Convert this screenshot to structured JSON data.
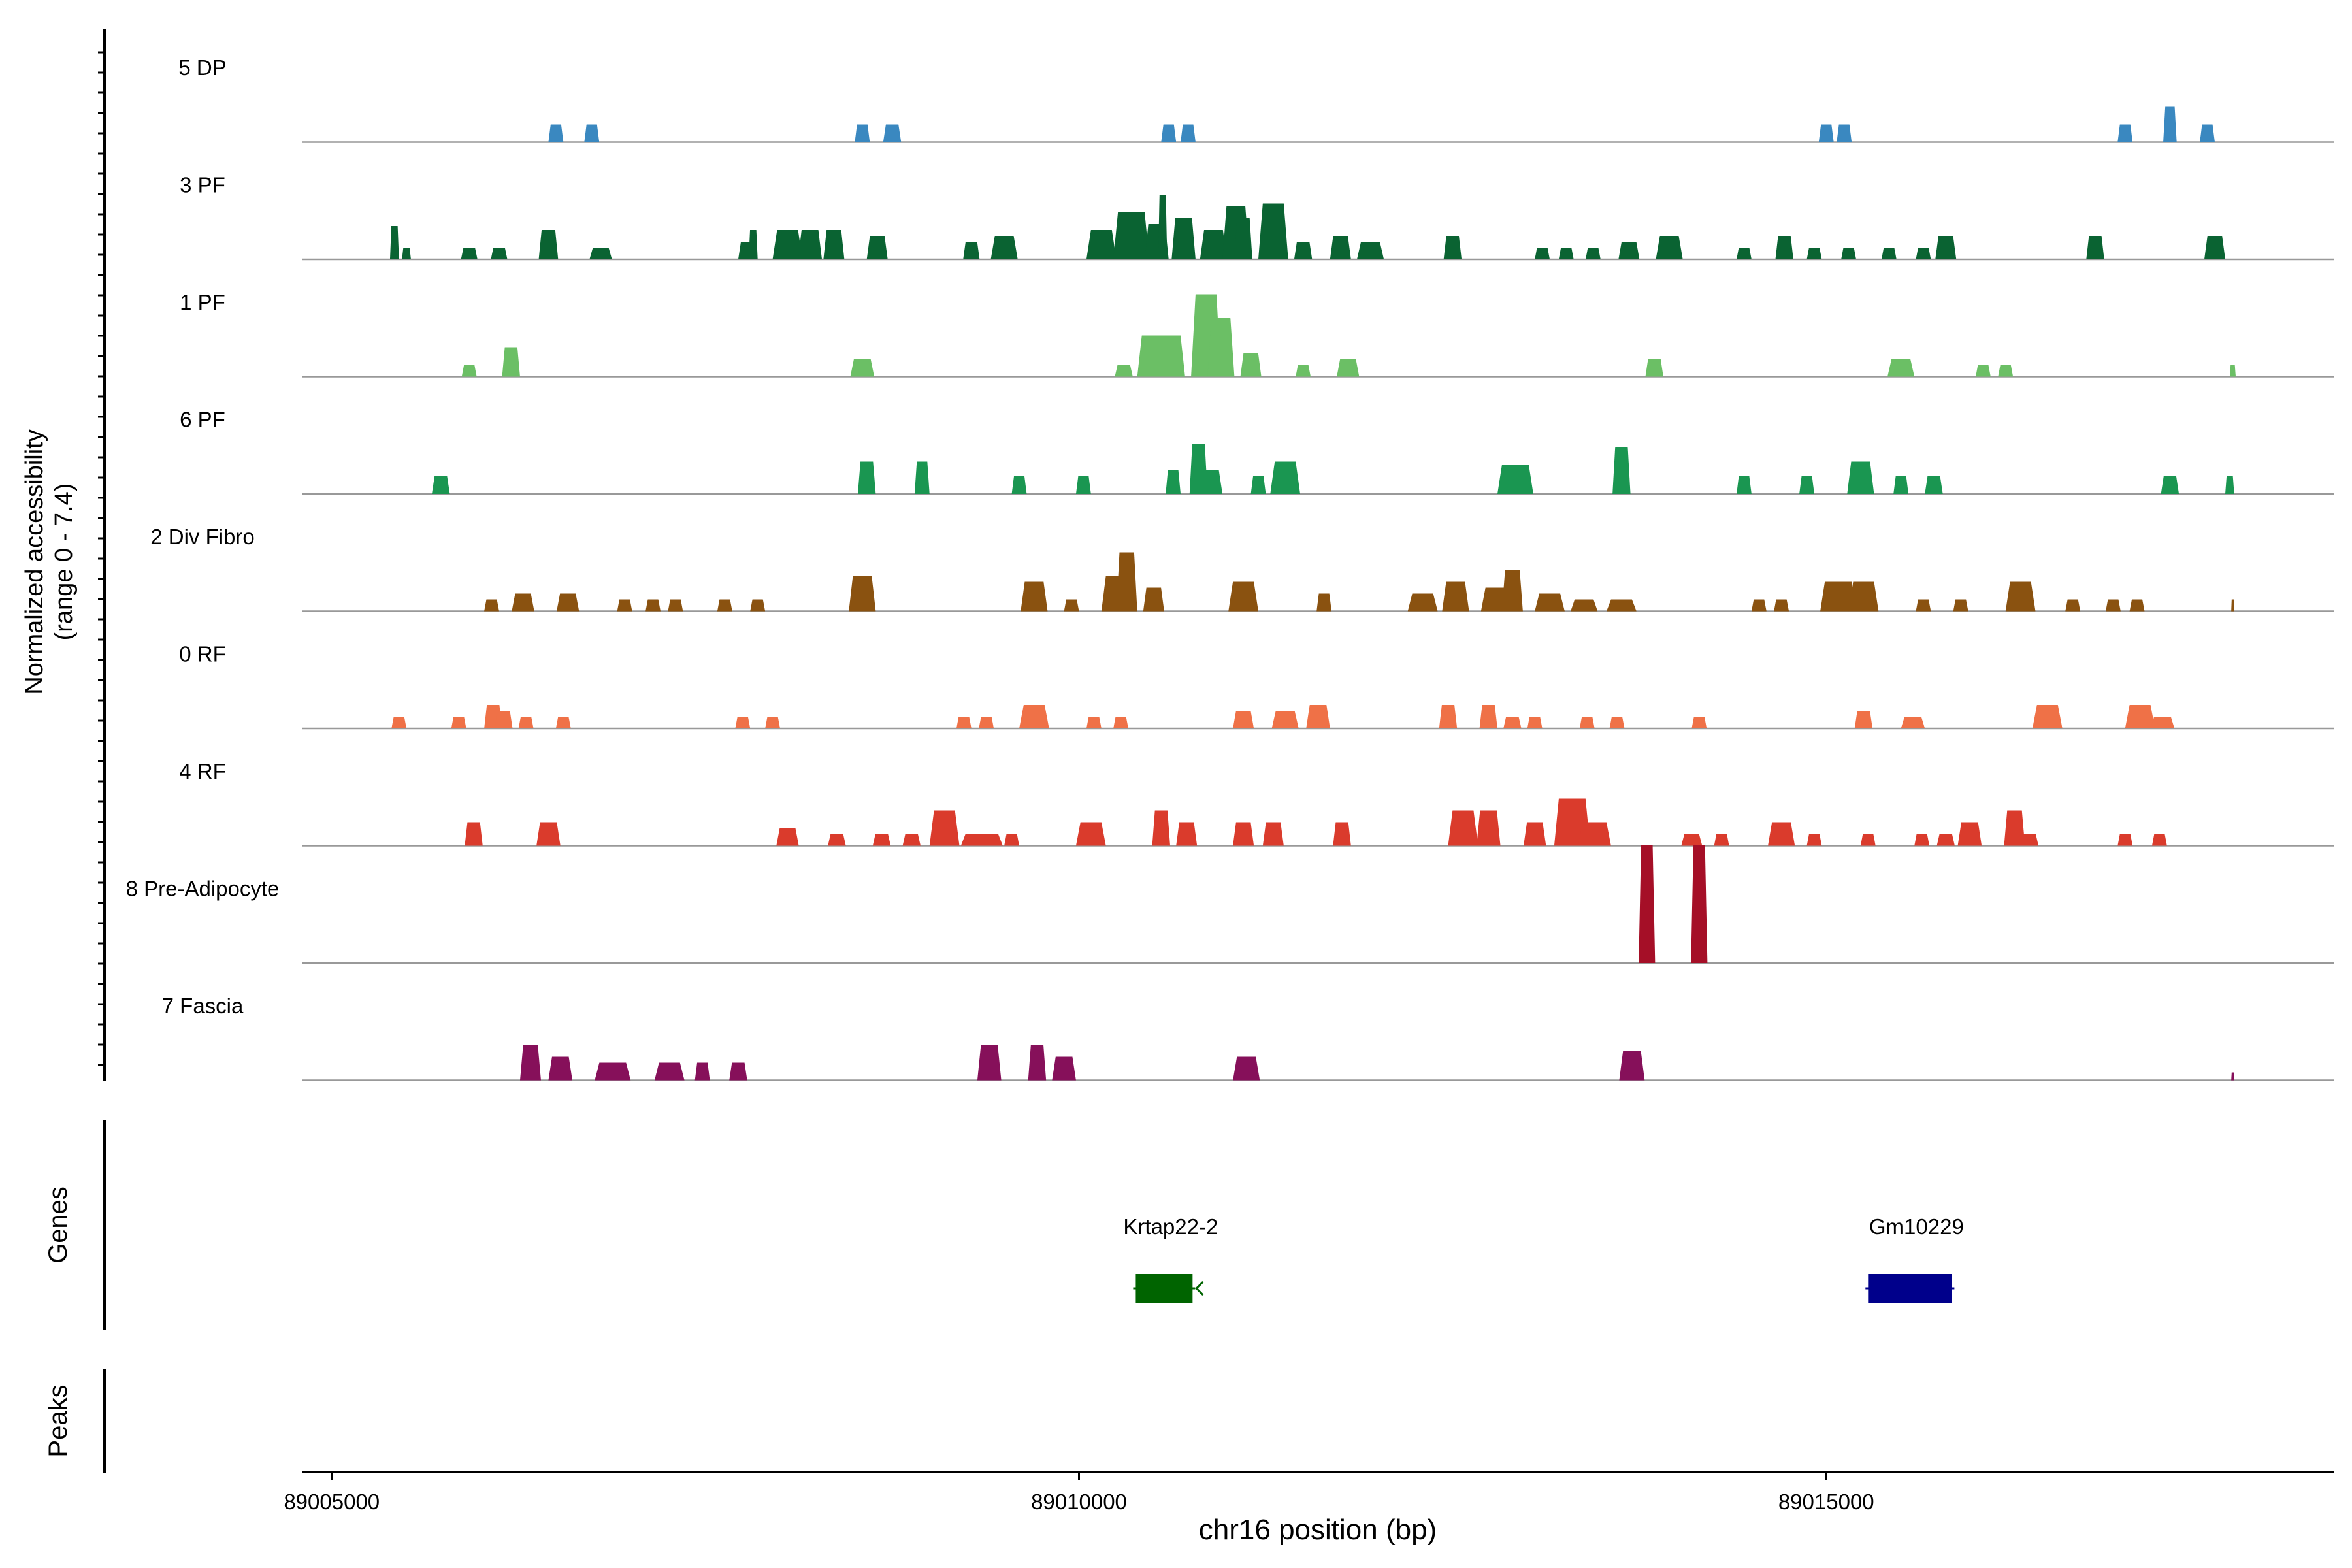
{
  "chart_data": {
    "type": "area",
    "title": "",
    "ylabel_line1": "Normalized accessibility",
    "ylabel_line2": "(range 0 - 7.4)",
    "xlabel": "chr16 position (bp)",
    "xlim": [
      89004800,
      89018400
    ],
    "ylim": [
      0,
      7.4
    ],
    "x_ticks": [
      {
        "value": 89005000,
        "label": "89005000"
      },
      {
        "value": 89010000,
        "label": "89010000"
      },
      {
        "value": 89015000,
        "label": "89015000"
      }
    ],
    "genes_label": "Genes",
    "peaks_label": "Peaks",
    "series": [
      {
        "name": "5 DP",
        "color": "#3a88c0",
        "peaks": [
          [
            89006500,
            100,
            3.6
          ],
          [
            89006740,
            100,
            3.6
          ],
          [
            89008550,
            100,
            3.6
          ],
          [
            89008750,
            120,
            3.6
          ],
          [
            89010600,
            100,
            3.6
          ],
          [
            89010730,
            100,
            3.6
          ],
          [
            89015000,
            100,
            3.6
          ],
          [
            89015120,
            100,
            3.6
          ],
          [
            89017000,
            100,
            3.6
          ],
          [
            89017300,
            90,
            7.2
          ],
          [
            89017550,
            100,
            3.6
          ]
        ]
      },
      {
        "name": "3 PF",
        "color": "#0a6332",
        "peaks": [
          [
            89005420,
            60,
            6.8
          ],
          [
            89005500,
            60,
            2.4
          ],
          [
            89005920,
            110,
            2.4
          ],
          [
            89006120,
            110,
            2.4
          ],
          [
            89006450,
            130,
            6.0
          ],
          [
            89006800,
            150,
            2.4
          ],
          [
            89007780,
            120,
            3.6
          ],
          [
            89007820,
            60,
            6.0
          ],
          [
            89008050,
            200,
            6.0
          ],
          [
            89008200,
            160,
            6.0
          ],
          [
            89008360,
            140,
            6.0
          ],
          [
            89008650,
            140,
            4.8
          ],
          [
            89009280,
            110,
            3.6
          ],
          [
            89009500,
            180,
            4.8
          ],
          [
            89010150,
            200,
            6.0
          ],
          [
            89010350,
            240,
            9.6
          ],
          [
            89010520,
            160,
            7.2
          ],
          [
            89010560,
            60,
            13.2
          ],
          [
            89010700,
            160,
            8.4
          ],
          [
            89010900,
            180,
            6.0
          ],
          [
            89011050,
            180,
            10.8
          ],
          [
            89011100,
            120,
            8.4
          ],
          [
            89011300,
            200,
            11.4
          ],
          [
            89011500,
            120,
            3.6
          ],
          [
            89011750,
            140,
            4.8
          ],
          [
            89011950,
            180,
            3.6
          ],
          [
            89012500,
            120,
            4.8
          ],
          [
            89013100,
            100,
            2.4
          ],
          [
            89013260,
            100,
            2.4
          ],
          [
            89013440,
            100,
            2.4
          ],
          [
            89013680,
            140,
            3.6
          ],
          [
            89013950,
            180,
            4.8
          ],
          [
            89014450,
            100,
            2.4
          ],
          [
            89014720,
            120,
            4.8
          ],
          [
            89014920,
            100,
            2.4
          ],
          [
            89015150,
            100,
            2.4
          ],
          [
            89015420,
            100,
            2.4
          ],
          [
            89015650,
            100,
            2.4
          ],
          [
            89015800,
            140,
            4.8
          ],
          [
            89016800,
            120,
            4.8
          ],
          [
            89017600,
            140,
            4.8
          ]
        ]
      },
      {
        "name": "1 PF",
        "color": "#6bbf65",
        "peaks": [
          [
            89005920,
            100,
            2.4
          ],
          [
            89006200,
            120,
            6.0
          ],
          [
            89008550,
            160,
            3.6
          ],
          [
            89010300,
            120,
            2.4
          ],
          [
            89010550,
            320,
            8.4
          ],
          [
            89010850,
            200,
            16.8
          ],
          [
            89010950,
            180,
            12.0
          ],
          [
            89011150,
            140,
            4.8
          ],
          [
            89011500,
            100,
            2.4
          ],
          [
            89011800,
            150,
            3.6
          ],
          [
            89013850,
            120,
            3.6
          ],
          [
            89015500,
            180,
            3.6
          ],
          [
            89016050,
            100,
            2.4
          ],
          [
            89016200,
            100,
            2.4
          ],
          [
            89017720,
            40,
            2.4
          ]
        ]
      },
      {
        "name": "6 PF",
        "color": "#1a9651",
        "peaks": [
          [
            89005730,
            120,
            3.6
          ],
          [
            89008580,
            120,
            6.6
          ],
          [
            89008950,
            100,
            6.6
          ],
          [
            89009600,
            100,
            3.6
          ],
          [
            89010030,
            100,
            3.6
          ],
          [
            89010630,
            100,
            4.8
          ],
          [
            89010800,
            120,
            10.2
          ],
          [
            89010880,
            160,
            4.8
          ],
          [
            89011200,
            100,
            3.6
          ],
          [
            89011380,
            200,
            6.6
          ],
          [
            89012920,
            240,
            6.0
          ],
          [
            89013630,
            120,
            9.6
          ],
          [
            89014450,
            100,
            3.6
          ],
          [
            89014870,
            100,
            3.6
          ],
          [
            89015230,
            180,
            6.6
          ],
          [
            89015500,
            100,
            3.6
          ],
          [
            89015720,
            120,
            3.6
          ],
          [
            89017300,
            120,
            3.6
          ],
          [
            89017700,
            60,
            3.6
          ]
        ]
      },
      {
        "name": "2 Div Fibro",
        "color": "#8a5210",
        "peaks": [
          [
            89006070,
            100,
            2.4
          ],
          [
            89006280,
            150,
            3.6
          ],
          [
            89006580,
            150,
            3.6
          ],
          [
            89006960,
            100,
            2.4
          ],
          [
            89007150,
            100,
            2.4
          ],
          [
            89007300,
            100,
            2.4
          ],
          [
            89007630,
            100,
            2.4
          ],
          [
            89007850,
            100,
            2.4
          ],
          [
            89008550,
            180,
            7.2
          ],
          [
            89009700,
            180,
            6.0
          ],
          [
            89009950,
            100,
            2.4
          ],
          [
            89010250,
            200,
            7.2
          ],
          [
            89010320,
            140,
            12.0
          ],
          [
            89010500,
            140,
            4.8
          ],
          [
            89011100,
            200,
            6.0
          ],
          [
            89011640,
            100,
            3.6
          ],
          [
            89012300,
            200,
            3.6
          ],
          [
            89012520,
            180,
            6.0
          ],
          [
            89012790,
            200,
            4.8
          ],
          [
            89012900,
            140,
            8.4
          ],
          [
            89013150,
            200,
            3.6
          ],
          [
            89013380,
            180,
            2.4
          ],
          [
            89013630,
            200,
            2.4
          ],
          [
            89014550,
            100,
            2.4
          ],
          [
            89014700,
            100,
            2.4
          ],
          [
            89015080,
            240,
            6.0
          ],
          [
            89015250,
            200,
            6.0
          ],
          [
            89015650,
            100,
            2.4
          ],
          [
            89015900,
            100,
            2.4
          ],
          [
            89016300,
            200,
            6.0
          ],
          [
            89016650,
            100,
            2.4
          ],
          [
            89016920,
            100,
            2.4
          ],
          [
            89017080,
            100,
            2.4
          ],
          [
            89017720,
            20,
            2.4
          ]
        ]
      },
      {
        "name": "0 RF",
        "color": "#ef7147",
        "peaks": [
          [
            89005450,
            100,
            2.4
          ],
          [
            89005850,
            100,
            2.4
          ],
          [
            89006080,
            120,
            4.8
          ],
          [
            89006150,
            120,
            3.6
          ],
          [
            89006300,
            100,
            2.4
          ],
          [
            89006550,
            100,
            2.4
          ],
          [
            89007750,
            100,
            2.4
          ],
          [
            89007950,
            100,
            2.4
          ],
          [
            89009230,
            100,
            2.4
          ],
          [
            89009380,
            100,
            2.4
          ],
          [
            89009700,
            200,
            4.8
          ],
          [
            89010100,
            100,
            2.4
          ],
          [
            89010280,
            100,
            2.4
          ],
          [
            89011100,
            140,
            3.6
          ],
          [
            89011380,
            180,
            3.6
          ],
          [
            89011600,
            160,
            4.8
          ],
          [
            89012470,
            120,
            4.8
          ],
          [
            89012740,
            120,
            4.8
          ],
          [
            89012900,
            120,
            2.4
          ],
          [
            89013050,
            100,
            2.4
          ],
          [
            89013400,
            100,
            2.4
          ],
          [
            89013600,
            100,
            2.4
          ],
          [
            89014150,
            100,
            2.4
          ],
          [
            89015250,
            120,
            3.6
          ],
          [
            89015580,
            160,
            2.4
          ],
          [
            89016480,
            200,
            4.8
          ],
          [
            89017100,
            200,
            4.8
          ],
          [
            89017250,
            160,
            2.4
          ]
        ]
      },
      {
        "name": "4 RF",
        "color": "#da3b2c",
        "peaks": [
          [
            89005950,
            120,
            4.8
          ],
          [
            89006450,
            160,
            4.8
          ],
          [
            89008050,
            150,
            3.6
          ],
          [
            89008380,
            120,
            2.4
          ],
          [
            89008680,
            120,
            2.4
          ],
          [
            89008880,
            120,
            2.4
          ],
          [
            89009100,
            200,
            7.2
          ],
          [
            89009350,
            280,
            2.4
          ],
          [
            89009550,
            100,
            2.4
          ],
          [
            89010080,
            200,
            4.8
          ],
          [
            89010550,
            120,
            7.2
          ],
          [
            89010720,
            140,
            4.8
          ],
          [
            89011100,
            140,
            4.8
          ],
          [
            89011300,
            140,
            4.8
          ],
          [
            89011760,
            120,
            4.8
          ],
          [
            89012570,
            200,
            7.2
          ],
          [
            89012740,
            160,
            7.2
          ],
          [
            89013050,
            150,
            4.8
          ],
          [
            89013300,
            240,
            9.6
          ],
          [
            89013450,
            220,
            4.8
          ],
          [
            89014100,
            140,
            2.4
          ],
          [
            89014300,
            100,
            2.4
          ],
          [
            89014700,
            180,
            4.8
          ],
          [
            89014920,
            100,
            2.4
          ],
          [
            89015280,
            100,
            2.4
          ],
          [
            89015640,
            100,
            2.4
          ],
          [
            89015800,
            120,
            2.4
          ],
          [
            89015960,
            160,
            4.8
          ],
          [
            89016260,
            140,
            7.2
          ],
          [
            89016360,
            120,
            2.4
          ],
          [
            89017000,
            100,
            2.4
          ],
          [
            89017230,
            100,
            2.4
          ]
        ]
      },
      {
        "name": "8 Pre-Adipocyte",
        "color": "#a50f27",
        "peaks": [
          [
            89013800,
            110,
            24.0
          ],
          [
            89014150,
            110,
            24.0
          ]
        ]
      },
      {
        "name": "7 Fascia",
        "color": "#86105a",
        "peaks": [
          [
            89006330,
            140,
            7.2
          ],
          [
            89006530,
            160,
            4.8
          ],
          [
            89006880,
            240,
            3.6
          ],
          [
            89007260,
            200,
            3.6
          ],
          [
            89007480,
            100,
            3.6
          ],
          [
            89007720,
            120,
            3.6
          ],
          [
            89009400,
            160,
            7.2
          ],
          [
            89009720,
            120,
            7.2
          ],
          [
            89009900,
            160,
            4.8
          ],
          [
            89011120,
            180,
            4.8
          ],
          [
            89013700,
            170,
            6.0
          ],
          [
            89017720,
            20,
            1.6
          ]
        ]
      }
    ],
    "genes": [
      {
        "name": "Krtap22-2",
        "start": 89010380,
        "end": 89010760,
        "color": "#006400",
        "strand": "-"
      },
      {
        "name": "Gm10229",
        "start": 89015280,
        "end": 89015840,
        "color": "#00008b",
        "strand": "+"
      }
    ]
  }
}
